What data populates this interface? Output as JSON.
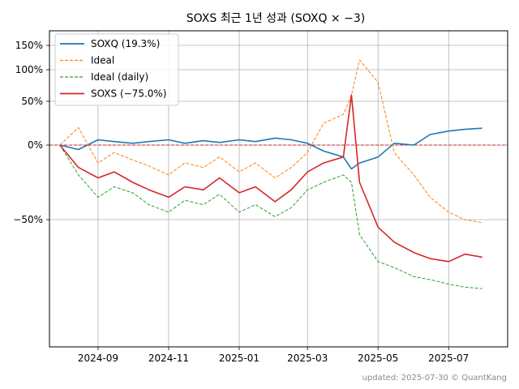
{
  "chart_data": {
    "type": "line",
    "title": "SOXS 최근 1년 성과 (SOXQ × −3)",
    "xlabel": "",
    "ylabel": "",
    "footer": "updated: 2025-07-30 © QuantKang",
    "x_ticks": [
      "2024-09",
      "2024-11",
      "2025-01",
      "2025-03",
      "2025-05",
      "2025-07"
    ],
    "y_ticks": [
      "150%",
      "100%",
      "50%",
      "0%",
      "−50%"
    ],
    "y_tick_values": [
      150,
      100,
      50,
      0,
      -50
    ],
    "y_scale": "symlog-style (expanded above 0%)",
    "xlim": [
      "2024-07-21",
      "2025-08-21"
    ],
    "grid": true,
    "legend_position": "top-left",
    "reference_line": {
      "y": 0,
      "color": "#d62728",
      "style": "dashed"
    },
    "x": [
      "2024-07-30",
      "2024-08-15",
      "2024-09-01",
      "2024-09-15",
      "2024-10-01",
      "2024-10-15",
      "2024-11-01",
      "2024-11-15",
      "2024-12-01",
      "2024-12-15",
      "2025-01-01",
      "2025-01-15",
      "2025-02-01",
      "2025-02-15",
      "2025-03-01",
      "2025-03-15",
      "2025-04-01",
      "2025-04-08",
      "2025-04-15",
      "2025-05-01",
      "2025-05-15",
      "2025-06-01",
      "2025-06-15",
      "2025-07-01",
      "2025-07-15",
      "2025-07-30"
    ],
    "series": [
      {
        "name": "SOXQ (19.3%)",
        "color": "#1f77b4",
        "style": "solid",
        "values": [
          0,
          -3,
          6,
          4,
          2,
          4,
          6,
          2,
          5,
          3,
          6,
          4,
          8,
          6,
          2,
          -4,
          -8,
          -16,
          -12,
          -8,
          2,
          0,
          12,
          16,
          18,
          19.3
        ]
      },
      {
        "name": "Ideal",
        "color": "#ff7f0e",
        "style": "dashed",
        "values": [
          0,
          20,
          -12,
          -5,
          -10,
          -14,
          -20,
          -12,
          -15,
          -8,
          -18,
          -12,
          -22,
          -15,
          -5,
          25,
          35,
          60,
          120,
          80,
          -5,
          -20,
          -35,
          -45,
          -50,
          -52
        ]
      },
      {
        "name": "Ideal (daily)",
        "color": "#2ca02c",
        "style": "dashed",
        "values": [
          0,
          -20,
          -35,
          -28,
          -32,
          -40,
          -45,
          -37,
          -40,
          -33,
          -45,
          -40,
          -48,
          -42,
          -30,
          -25,
          -20,
          -25,
          -60,
          -78,
          -82,
          -88,
          -90,
          -93,
          -95,
          -96
        ]
      },
      {
        "name": "SOXS (−75.0%)",
        "color": "#d62728",
        "style": "solid",
        "values": [
          0,
          -15,
          -22,
          -18,
          -25,
          -30,
          -35,
          -28,
          -30,
          -22,
          -32,
          -28,
          -38,
          -30,
          -18,
          -12,
          -8,
          60,
          -25,
          -55,
          -65,
          -72,
          -76,
          -78,
          -73,
          -75
        ]
      }
    ]
  }
}
